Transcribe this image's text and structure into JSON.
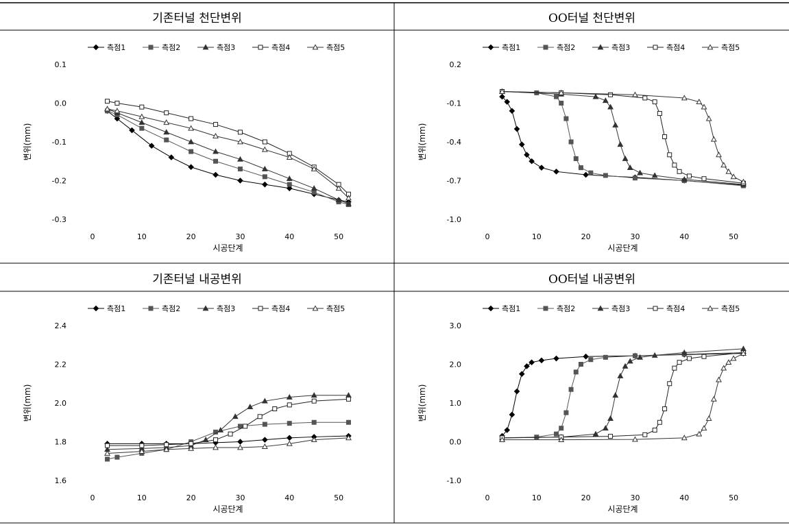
{
  "chart_data": [
    {
      "type": "line",
      "title": "기존터널 천단변위",
      "xlabel": "시공단계",
      "ylabel": "변위(mm)",
      "xlim": [
        0,
        55
      ],
      "ylim": [
        -0.3,
        0.1
      ],
      "xticks": [
        0,
        10,
        20,
        30,
        40,
        50
      ],
      "yticks": [
        -0.3,
        -0.2,
        -0.1,
        0.0,
        0.1
      ],
      "ytick_labels": [
        "-0.3",
        "-0.2",
        "-0.1",
        "0.0",
        "0.1"
      ],
      "legend_position": "top",
      "series": [
        {
          "name": "측점1",
          "marker": "diamond-filled",
          "x": [
            3,
            5,
            8,
            12,
            16,
            20,
            25,
            30,
            35,
            40,
            45,
            50,
            52
          ],
          "y": [
            -0.02,
            -0.04,
            -0.07,
            -0.11,
            -0.14,
            -0.165,
            -0.185,
            -0.2,
            -0.21,
            -0.22,
            -0.235,
            -0.25,
            -0.255
          ]
        },
        {
          "name": "측점2",
          "marker": "square-filled",
          "x": [
            3,
            5,
            10,
            15,
            20,
            25,
            30,
            35,
            40,
            45,
            50,
            52
          ],
          "y": [
            -0.02,
            -0.03,
            -0.065,
            -0.095,
            -0.125,
            -0.15,
            -0.17,
            -0.19,
            -0.21,
            -0.23,
            -0.255,
            -0.262
          ]
        },
        {
          "name": "측점3",
          "marker": "triangle-filled",
          "x": [
            3,
            5,
            10,
            15,
            20,
            25,
            30,
            35,
            40,
            45,
            50,
            52
          ],
          "y": [
            -0.015,
            -0.025,
            -0.05,
            -0.075,
            -0.1,
            -0.125,
            -0.145,
            -0.17,
            -0.195,
            -0.22,
            -0.25,
            -0.26
          ]
        },
        {
          "name": "측점4",
          "marker": "square-open",
          "x": [
            3,
            5,
            10,
            15,
            20,
            25,
            30,
            35,
            40,
            45,
            50,
            52
          ],
          "y": [
            0.005,
            0.0,
            -0.01,
            -0.025,
            -0.04,
            -0.055,
            -0.075,
            -0.1,
            -0.13,
            -0.165,
            -0.21,
            -0.235
          ]
        },
        {
          "name": "측점5",
          "marker": "triangle-open",
          "x": [
            3,
            5,
            10,
            15,
            20,
            25,
            30,
            35,
            40,
            45,
            50,
            52
          ],
          "y": [
            -0.015,
            -0.02,
            -0.035,
            -0.05,
            -0.065,
            -0.085,
            -0.1,
            -0.12,
            -0.14,
            -0.17,
            -0.22,
            -0.245
          ]
        }
      ]
    },
    {
      "type": "line",
      "title": "OO터널 천단변위",
      "xlabel": "시공단계",
      "ylabel": "변위(mm)",
      "xlim": [
        0,
        55
      ],
      "ylim": [
        -1.0,
        0.2
      ],
      "xticks": [
        0,
        10,
        20,
        30,
        40,
        50
      ],
      "yticks": [
        -1.0,
        -0.7,
        -0.4,
        -0.1,
        0.2
      ],
      "ytick_labels": [
        "-1.0",
        "-0.7",
        "-0.4",
        "-0.1",
        "0.2"
      ],
      "legend_position": "top",
      "series": [
        {
          "name": "측점1",
          "marker": "diamond-filled",
          "x": [
            3,
            4,
            5,
            6,
            7,
            8,
            9,
            11,
            14,
            20,
            30,
            40,
            52
          ],
          "y": [
            -0.05,
            -0.09,
            -0.16,
            -0.3,
            -0.42,
            -0.5,
            -0.55,
            -0.6,
            -0.63,
            -0.655,
            -0.675,
            -0.7,
            -0.735
          ]
        },
        {
          "name": "측점2",
          "marker": "square-filled",
          "x": [
            3,
            10,
            14,
            15,
            16,
            17,
            18,
            19,
            21,
            24,
            30,
            40,
            52
          ],
          "y": [
            -0.01,
            -0.02,
            -0.05,
            -0.1,
            -0.22,
            -0.4,
            -0.53,
            -0.6,
            -0.64,
            -0.66,
            -0.68,
            -0.7,
            -0.74
          ]
        },
        {
          "name": "측점3",
          "marker": "triangle-filled",
          "x": [
            3,
            15,
            22,
            24,
            25,
            26,
            27,
            28,
            29,
            31,
            34,
            40,
            52
          ],
          "y": [
            -0.01,
            -0.03,
            -0.05,
            -0.08,
            -0.13,
            -0.27,
            -0.42,
            -0.53,
            -0.6,
            -0.64,
            -0.66,
            -0.69,
            -0.73
          ]
        },
        {
          "name": "측점4",
          "marker": "square-open",
          "x": [
            3,
            15,
            25,
            32,
            34,
            35,
            36,
            37,
            38,
            39,
            41,
            44,
            52
          ],
          "y": [
            -0.01,
            -0.02,
            -0.035,
            -0.06,
            -0.09,
            -0.18,
            -0.36,
            -0.5,
            -0.58,
            -0.63,
            -0.665,
            -0.685,
            -0.72
          ]
        },
        {
          "name": "측점5",
          "marker": "triangle-open",
          "x": [
            3,
            15,
            30,
            40,
            43,
            44,
            45,
            46,
            47,
            48,
            49,
            50,
            52
          ],
          "y": [
            -0.01,
            -0.02,
            -0.035,
            -0.06,
            -0.09,
            -0.13,
            -0.22,
            -0.38,
            -0.5,
            -0.58,
            -0.63,
            -0.67,
            -0.71
          ]
        }
      ]
    },
    {
      "type": "line",
      "title": "기존터널 내공변위",
      "xlabel": "시공단계",
      "ylabel": "변위(mm)",
      "xlim": [
        0,
        55
      ],
      "ylim": [
        1.6,
        2.4
      ],
      "xticks": [
        0,
        10,
        20,
        30,
        40,
        50
      ],
      "yticks": [
        1.6,
        1.8,
        2.0,
        2.2,
        2.4
      ],
      "ytick_labels": [
        "1.6",
        "1.8",
        "2.0",
        "2.2",
        "2.4"
      ],
      "legend_position": "top",
      "series": [
        {
          "name": "측점1",
          "marker": "diamond-filled",
          "x": [
            3,
            10,
            15,
            20,
            25,
            30,
            35,
            40,
            45,
            52
          ],
          "y": [
            1.79,
            1.79,
            1.79,
            1.79,
            1.795,
            1.8,
            1.81,
            1.82,
            1.825,
            1.83
          ]
        },
        {
          "name": "측점2",
          "marker": "square-filled",
          "x": [
            3,
            5,
            10,
            15,
            20,
            25,
            30,
            35,
            40,
            45,
            52
          ],
          "y": [
            1.71,
            1.72,
            1.74,
            1.76,
            1.8,
            1.85,
            1.88,
            1.89,
            1.895,
            1.9,
            1.9
          ]
        },
        {
          "name": "측점3",
          "marker": "triangle-filled",
          "x": [
            3,
            10,
            15,
            20,
            23,
            26,
            29,
            32,
            35,
            40,
            45,
            52
          ],
          "y": [
            1.76,
            1.765,
            1.77,
            1.78,
            1.81,
            1.86,
            1.93,
            1.98,
            2.01,
            2.03,
            2.04,
            2.04
          ]
        },
        {
          "name": "측점4",
          "marker": "square-open",
          "x": [
            3,
            10,
            15,
            20,
            25,
            28,
            31,
            34,
            37,
            40,
            45,
            52
          ],
          "y": [
            1.78,
            1.78,
            1.785,
            1.79,
            1.81,
            1.84,
            1.88,
            1.93,
            1.97,
            1.99,
            2.01,
            2.02
          ]
        },
        {
          "name": "측점5",
          "marker": "triangle-open",
          "x": [
            3,
            10,
            15,
            20,
            25,
            30,
            35,
            40,
            45,
            52
          ],
          "y": [
            1.74,
            1.75,
            1.76,
            1.765,
            1.77,
            1.77,
            1.775,
            1.79,
            1.81,
            1.82
          ]
        }
      ]
    },
    {
      "type": "line",
      "title": "OO터널 내공변위",
      "xlabel": "시공단계",
      "ylabel": "변위(mm)",
      "xlim": [
        0,
        55
      ],
      "ylim": [
        -1.0,
        3.0
      ],
      "xticks": [
        0,
        10,
        20,
        30,
        40,
        50
      ],
      "yticks": [
        -1.0,
        0.0,
        1.0,
        2.0,
        3.0
      ],
      "ytick_labels": [
        "-1.0",
        "0.0",
        "1.0",
        "2.0",
        "3.0"
      ],
      "legend_position": "top",
      "series": [
        {
          "name": "측점1",
          "marker": "diamond-filled",
          "x": [
            3,
            4,
            5,
            6,
            7,
            8,
            9,
            11,
            14,
            20,
            30,
            40,
            52
          ],
          "y": [
            0.15,
            0.3,
            0.7,
            1.3,
            1.75,
            1.95,
            2.05,
            2.1,
            2.15,
            2.2,
            2.22,
            2.25,
            2.28
          ]
        },
        {
          "name": "측점2",
          "marker": "square-filled",
          "x": [
            3,
            10,
            14,
            15,
            16,
            17,
            18,
            19,
            21,
            24,
            30,
            40,
            52
          ],
          "y": [
            0.1,
            0.12,
            0.2,
            0.35,
            0.75,
            1.35,
            1.8,
            2.0,
            2.12,
            2.18,
            2.22,
            2.26,
            2.3
          ]
        },
        {
          "name": "측점3",
          "marker": "triangle-filled",
          "x": [
            3,
            15,
            22,
            24,
            25,
            26,
            27,
            28,
            29,
            31,
            34,
            40,
            52
          ],
          "y": [
            0.1,
            0.12,
            0.2,
            0.35,
            0.6,
            1.2,
            1.7,
            1.95,
            2.08,
            2.18,
            2.23,
            2.3,
            2.4
          ]
        },
        {
          "name": "측점4",
          "marker": "square-open",
          "x": [
            3,
            15,
            25,
            32,
            34,
            35,
            36,
            37,
            38,
            39,
            41,
            44,
            52
          ],
          "y": [
            0.1,
            0.12,
            0.14,
            0.18,
            0.3,
            0.5,
            0.85,
            1.5,
            1.9,
            2.05,
            2.15,
            2.2,
            2.3
          ]
        },
        {
          "name": "측점5",
          "marker": "triangle-open",
          "x": [
            3,
            15,
            30,
            40,
            43,
            44,
            45,
            46,
            47,
            48,
            49,
            50,
            52
          ],
          "y": [
            0.05,
            0.05,
            0.06,
            0.1,
            0.2,
            0.35,
            0.6,
            1.1,
            1.6,
            1.9,
            2.05,
            2.15,
            2.28
          ]
        }
      ]
    }
  ]
}
